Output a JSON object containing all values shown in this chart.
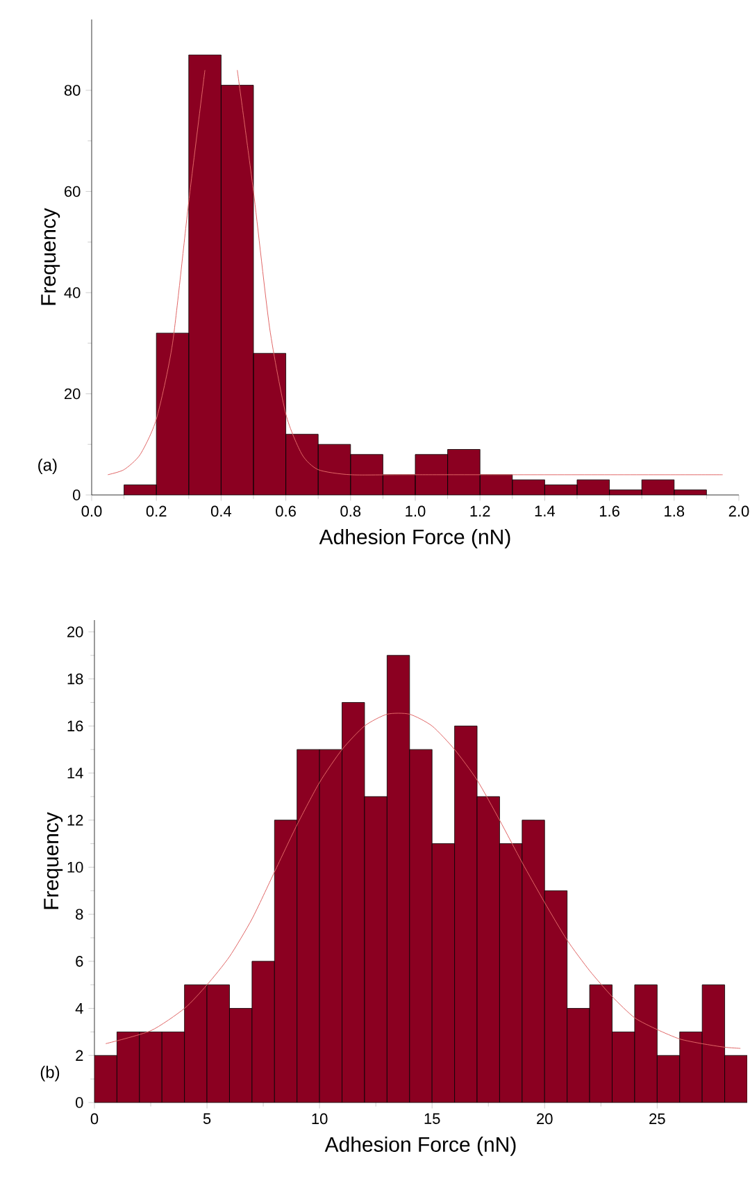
{
  "chart_data": [
    {
      "type": "histogram",
      "xlabel": "Adhesion Force (nN)",
      "ylabel": "Frequency",
      "annotations": [
        "(a)"
      ],
      "series": [
        {
          "color": "#8b0021",
          "bins": [
            0.1,
            0.2,
            0.3,
            0.4,
            0.5,
            0.6,
            0.7,
            0.8,
            0.9,
            1.0,
            1.1,
            1.2,
            1.3,
            1.4,
            1.5,
            1.6,
            1.7,
            1.8,
            1.9
          ],
          "values": [
            2,
            32,
            87,
            81,
            28,
            12,
            10,
            8,
            4,
            8,
            9,
            4,
            3,
            2,
            3,
            1,
            3,
            1
          ]
        },
        {
          "type": "line",
          "color": "#e06666",
          "x": [
            0.05,
            0.1,
            0.15,
            0.2,
            0.25,
            0.3,
            0.35,
            0.38,
            0.41,
            0.45,
            0.5,
            0.55,
            0.6,
            0.65,
            0.7,
            0.8,
            1.0,
            1.95
          ],
          "values": [
            4,
            5,
            8,
            15,
            30,
            58,
            84,
            null,
            null,
            84,
            60,
            33,
            16,
            8,
            5,
            4,
            4,
            4
          ]
        }
      ],
      "xlim": [
        0,
        2
      ],
      "xticks": [
        {
          "value": 0,
          "label": "0.0"
        },
        0.2,
        0.4,
        0.6,
        0.8,
        {
          "value": 1,
          "label": "1.0"
        },
        1.2,
        1.4,
        1.6,
        1.8,
        {
          "value": 2,
          "label": "2.0"
        }
      ],
      "ylim": [
        0,
        94
      ],
      "yticks": [
        0,
        20,
        40,
        60,
        80
      ]
    },
    {
      "type": "histogram",
      "xlabel": "Adhesion Force (nN)",
      "ylabel": "Frequency",
      "annotations": [
        "(b)"
      ],
      "series": [
        {
          "color": "#8b0021",
          "bins": [
            0,
            1,
            2,
            3,
            4,
            5,
            6,
            7,
            8,
            9,
            10,
            11,
            12,
            13,
            14,
            15,
            16,
            17,
            18,
            19,
            20,
            21,
            22,
            23,
            24,
            25,
            26,
            27,
            28,
            29
          ],
          "values": [
            2,
            3,
            3,
            3,
            5,
            5,
            4,
            6,
            12,
            15,
            15,
            17,
            13,
            19,
            15,
            11,
            16,
            13,
            11,
            12,
            9,
            4,
            5,
            3,
            5,
            2,
            3,
            5,
            2
          ]
        },
        {
          "type": "line",
          "color": "#e06666",
          "x": [
            0.5,
            2.5,
            4,
            5,
            6,
            7,
            8,
            9,
            10,
            11,
            12,
            13,
            14,
            15,
            16,
            17,
            18,
            19,
            20,
            21,
            22,
            23,
            24,
            25,
            26,
            27,
            28,
            28.7
          ],
          "values": [
            2.5,
            3.05,
            4.0,
            5.0,
            6.2,
            7.8,
            9.8,
            11.8,
            13.6,
            15.0,
            16.0,
            16.5,
            16.5,
            16.0,
            15.0,
            13.7,
            12.0,
            10.2,
            8.5,
            6.9,
            5.6,
            4.5,
            3.6,
            3.1,
            2.7,
            2.5,
            2.35,
            2.3
          ]
        }
      ],
      "xlim": [
        0,
        29
      ],
      "xticks": [
        0,
        5,
        10,
        15,
        20,
        25
      ],
      "ylim": [
        0,
        20.5
      ],
      "yticks": [
        0,
        2,
        4,
        6,
        8,
        10,
        12,
        14,
        16,
        18,
        20
      ]
    }
  ]
}
